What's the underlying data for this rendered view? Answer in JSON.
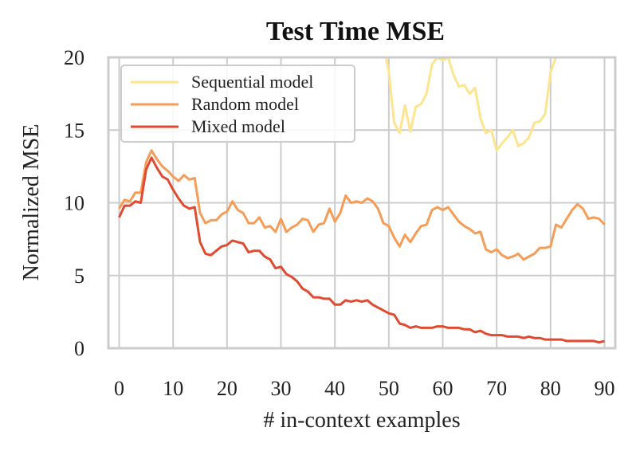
{
  "chart_data": {
    "type": "line",
    "title": "Test Time MSE",
    "xlabel": "# in-context examples",
    "ylabel": "Normalized MSE",
    "xlim": [
      -2,
      92
    ],
    "ylim": [
      0,
      20
    ],
    "xticks": [
      0,
      10,
      20,
      30,
      40,
      50,
      60,
      70,
      80,
      90
    ],
    "yticks": [
      0,
      5,
      10,
      15,
      20
    ],
    "grid": true,
    "legend_position": "top-left",
    "series": [
      {
        "name": "Sequential model",
        "color": "#fde58f",
        "x": [
          49.5,
          50,
          51,
          52,
          53,
          54,
          55,
          56,
          57,
          58,
          59,
          60,
          61,
          62,
          63,
          64,
          65,
          66,
          67,
          68,
          69,
          70,
          71,
          72,
          73,
          74,
          75,
          76,
          77,
          78,
          79,
          80,
          81,
          81.5
        ],
        "y": [
          20,
          19,
          15.5,
          14.8,
          16.7,
          14.9,
          16.6,
          16.8,
          17.5,
          19.5,
          20,
          19.8,
          20,
          18.8,
          18,
          18.1,
          17.5,
          17.9,
          15.8,
          14.8,
          15.0,
          13.6,
          14.1,
          14.5,
          15.0,
          13.9,
          14.1,
          14.5,
          15.5,
          15.6,
          16.1,
          19,
          20,
          20
        ]
      },
      {
        "name": "Random model",
        "color": "#f59c57",
        "x": [
          0,
          1,
          2,
          3,
          4,
          5,
          6,
          7,
          8,
          9,
          10,
          11,
          12,
          13,
          14,
          15,
          16,
          17,
          18,
          19,
          20,
          21,
          22,
          23,
          24,
          25,
          26,
          27,
          28,
          29,
          30,
          31,
          32,
          33,
          34,
          35,
          36,
          37,
          38,
          39,
          40,
          41,
          42,
          43,
          44,
          45,
          46,
          47,
          48,
          49,
          50,
          51,
          52,
          53,
          54,
          55,
          56,
          57,
          58,
          59,
          60,
          61,
          62,
          63,
          64,
          65,
          66,
          67,
          68,
          69,
          70,
          71,
          72,
          73,
          74,
          75,
          76,
          77,
          78,
          79,
          80,
          81,
          82,
          83,
          84,
          85,
          86,
          87,
          88,
          89,
          90
        ],
        "y": [
          9.6,
          10.2,
          10.1,
          10.7,
          10.7,
          12.8,
          13.6,
          13.0,
          12.5,
          12.2,
          11.8,
          11.5,
          11.9,
          11.6,
          11.7,
          9.3,
          8.6,
          8.8,
          8.8,
          9.2,
          9.4,
          10.1,
          9.5,
          9.3,
          8.6,
          8.6,
          9.0,
          8.3,
          8.4,
          8.0,
          8.9,
          8.0,
          8.3,
          8.5,
          8.9,
          8.8,
          8.0,
          8.5,
          8.6,
          9.6,
          8.7,
          9.3,
          10.5,
          10.0,
          10.1,
          10.0,
          10.3,
          10.1,
          9.6,
          8.6,
          8.4,
          7.6,
          7.0,
          7.8,
          7.3,
          7.9,
          8.4,
          8.5,
          9.5,
          9.7,
          9.5,
          9.7,
          9.2,
          8.7,
          8.4,
          8.2,
          7.9,
          8.0,
          6.8,
          6.6,
          6.8,
          6.4,
          6.2,
          6.3,
          6.5,
          6.1,
          6.3,
          6.5,
          6.9,
          6.9,
          7.0,
          8.5,
          8.3,
          8.9,
          9.5,
          9.9,
          9.6,
          8.9,
          9.0,
          8.9,
          8.5
        ]
      },
      {
        "name": "Mixed model",
        "color": "#e04a31",
        "x": [
          0,
          1,
          2,
          3,
          4,
          5,
          6,
          7,
          8,
          9,
          10,
          11,
          12,
          13,
          14,
          15,
          16,
          17,
          18,
          19,
          20,
          21,
          22,
          23,
          24,
          25,
          26,
          27,
          28,
          29,
          30,
          31,
          32,
          33,
          34,
          35,
          36,
          37,
          38,
          39,
          40,
          41,
          42,
          43,
          44,
          45,
          46,
          47,
          48,
          49,
          50,
          51,
          52,
          53,
          54,
          55,
          56,
          57,
          58,
          59,
          60,
          61,
          62,
          63,
          64,
          65,
          66,
          67,
          68,
          69,
          70,
          71,
          72,
          73,
          74,
          75,
          76,
          77,
          78,
          79,
          80,
          81,
          82,
          83,
          84,
          85,
          86,
          87,
          88,
          89,
          90
        ],
        "y": [
          9.0,
          9.8,
          9.8,
          10.1,
          10.0,
          12.3,
          13.1,
          12.4,
          11.8,
          11.6,
          10.9,
          10.3,
          9.8,
          9.6,
          9.7,
          7.3,
          6.5,
          6.4,
          6.7,
          7.0,
          7.1,
          7.4,
          7.3,
          7.2,
          6.6,
          6.7,
          6.7,
          6.3,
          6.1,
          5.5,
          5.6,
          5.1,
          4.9,
          4.6,
          4.1,
          3.9,
          3.5,
          3.5,
          3.4,
          3.4,
          3.0,
          3.0,
          3.3,
          3.2,
          3.3,
          3.2,
          3.3,
          3.0,
          2.8,
          2.6,
          2.4,
          2.3,
          1.7,
          1.6,
          1.4,
          1.5,
          1.4,
          1.4,
          1.4,
          1.5,
          1.5,
          1.4,
          1.4,
          1.4,
          1.3,
          1.3,
          1.1,
          1.2,
          1.0,
          0.9,
          0.9,
          0.9,
          0.8,
          0.8,
          0.8,
          0.7,
          0.8,
          0.7,
          0.7,
          0.6,
          0.6,
          0.6,
          0.6,
          0.5,
          0.5,
          0.5,
          0.5,
          0.5,
          0.5,
          0.4,
          0.5
        ]
      }
    ]
  }
}
